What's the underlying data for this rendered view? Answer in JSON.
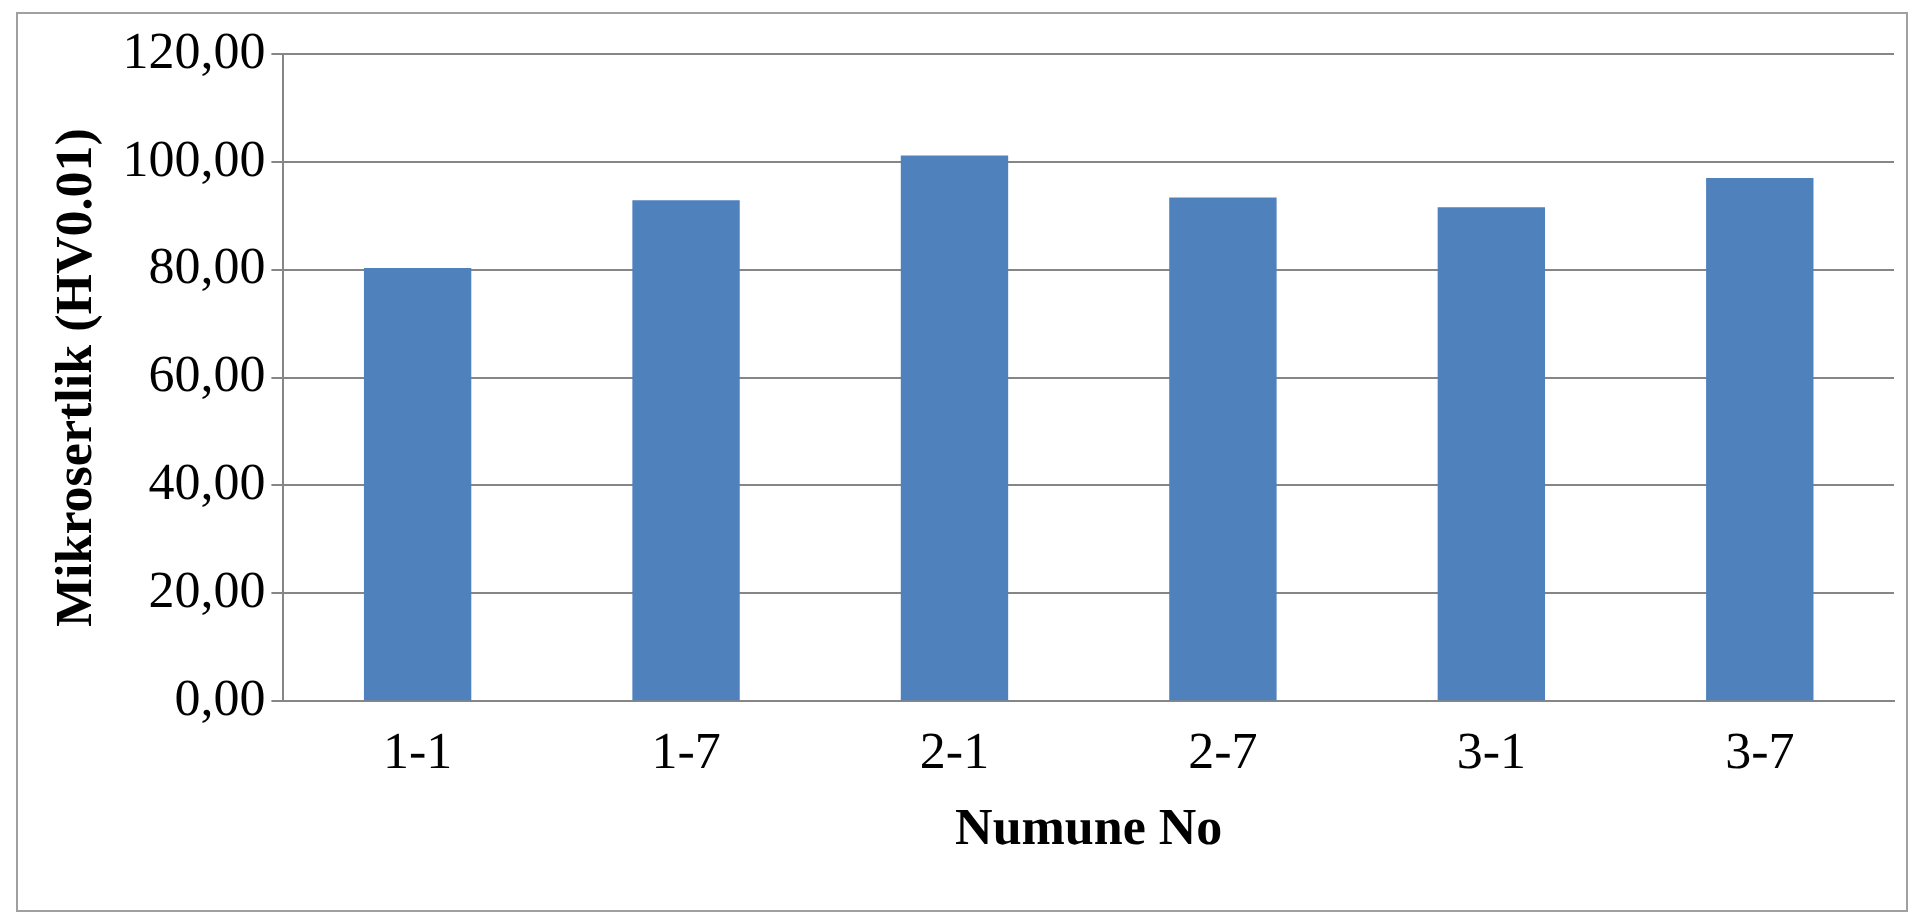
{
  "chart_data": {
    "type": "bar",
    "xlabel": "Numune No",
    "ylabel": "Mikrosertlik (HV0.01)",
    "categories": [
      "1-1",
      "1-7",
      "2-1",
      "2-7",
      "3-1",
      "3-7"
    ],
    "values": [
      80.3,
      92.9,
      101.2,
      93.4,
      91.6,
      97.0
    ],
    "color": "#4f81bd",
    "ylim": [
      0,
      120
    ],
    "yticks": [
      {
        "value": 0,
        "label": "0,00"
      },
      {
        "value": 20,
        "label": "20,00"
      },
      {
        "value": 40,
        "label": "40,00"
      },
      {
        "value": 60,
        "label": "60,00"
      },
      {
        "value": 80,
        "label": "80,00"
      },
      {
        "value": 100,
        "label": "100,00"
      },
      {
        "value": 120,
        "label": "120,00"
      }
    ],
    "grid": "y"
  }
}
